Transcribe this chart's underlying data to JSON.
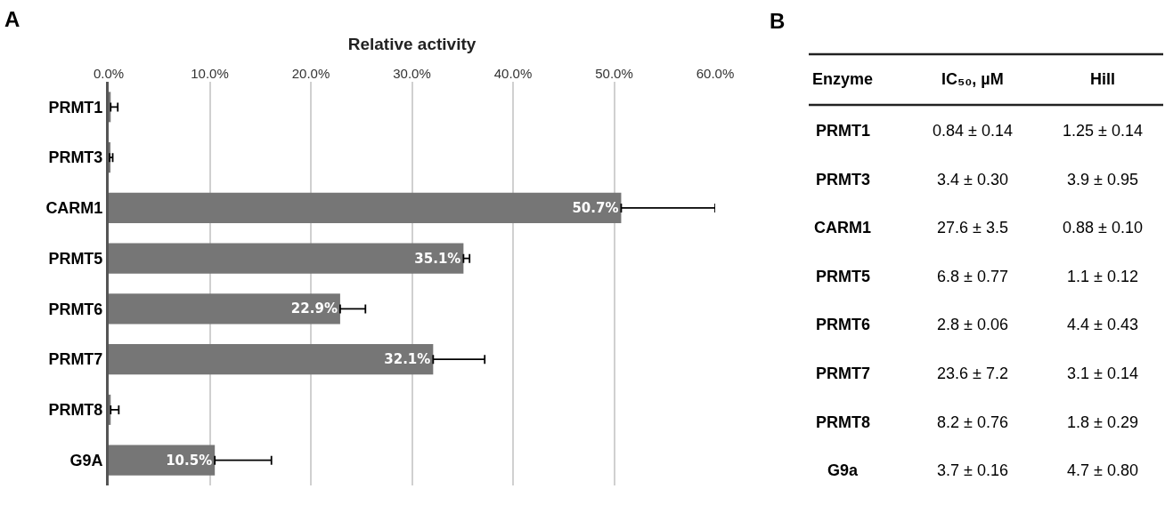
{
  "chart_data": [
    {
      "type": "bar",
      "orientation": "horizontal",
      "title": "A",
      "xlabel": "Relative activity",
      "categories": [
        "PRMT1",
        "PRMT3",
        "CARM1",
        "PRMT5",
        "PRMT6",
        "PRMT7",
        "PRMT8",
        "G9A"
      ],
      "values": [
        0.2,
        0.1,
        50.7,
        35.1,
        22.9,
        32.1,
        0.2,
        10.5
      ],
      "errors": [
        [
          0.2,
          0.9
        ],
        [
          0.1,
          0.4
        ],
        [
          50.7,
          60.0
        ],
        [
          35.1,
          35.7
        ],
        [
          22.9,
          25.4
        ],
        [
          32.1,
          37.2
        ],
        [
          0.2,
          1.0
        ],
        [
          10.5,
          16.1
        ]
      ],
      "value_labels": [
        null,
        null,
        "50.7%",
        "35.1%",
        "22.9%",
        "32.1%",
        null,
        "10.5%"
      ],
      "color": "#767676",
      "xlim": [
        0,
        60
      ],
      "xticks": [
        {
          "value": 0,
          "label": "0.0%"
        },
        {
          "value": 10,
          "label": "10.0%"
        },
        {
          "value": 20,
          "label": "20.0%"
        },
        {
          "value": 30,
          "label": "30.0%"
        },
        {
          "value": 40,
          "label": "40.0%"
        },
        {
          "value": 50,
          "label": "50.0%"
        },
        {
          "value": 60,
          "label": "60.0%"
        }
      ],
      "grid": "x"
    },
    {
      "type": "other",
      "title": "B",
      "annotations": [
        "Enzyme",
        "IC₅₀, µM",
        "Hill",
        "PRMT1",
        "0.84 ± 0.14",
        "1.25 ± 0.14",
        "PRMT3",
        "3.4 ± 0.30",
        "3.9 ± 0.95",
        "CARM1",
        "27.6 ± 3.5",
        "0.88 ± 0.10",
        "PRMT5",
        "6.8 ± 0.77",
        "1.1 ± 0.12",
        "PRMT6",
        "2.8 ± 0.06",
        "4.4 ± 0.43",
        "PRMT7",
        "23.6 ± 7.2",
        "3.1 ± 0.14",
        "PRMT8",
        "8.2 ± 0.76",
        "1.8 ± 0.29",
        "G9a",
        "3.7 ± 0.16",
        "4.7 ± 0.80"
      ]
    }
  ]
}
